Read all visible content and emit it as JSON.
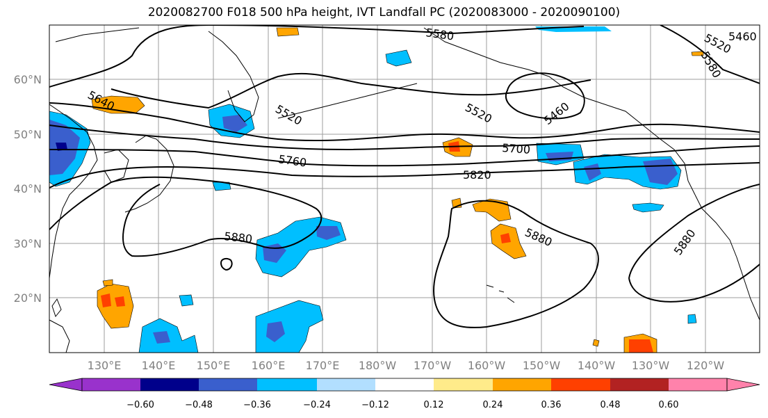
{
  "title": "2020082700 F018 500 hPa height, IVT Landfall PC (2020083000 - 2020090100)",
  "lat_labels": [
    "60°N",
    "50°N",
    "40°N",
    "30°N",
    "20°N"
  ],
  "lon_labels": [
    "130°E",
    "140°E",
    "150°E",
    "160°E",
    "170°E",
    "180°W",
    "170°W",
    "160°W",
    "150°W",
    "140°W",
    "130°W",
    "120°W"
  ],
  "contour_labels": [
    "5580",
    "5520",
    "5460",
    "5640",
    "5520",
    "5520",
    "5460",
    "5700",
    "5760",
    "5820",
    "5880",
    "5880",
    "5880",
    "5580"
  ],
  "colorbar": {
    "ticks": [
      "−0.60",
      "−0.48",
      "−0.36",
      "−0.24",
      "−0.12",
      "0.12",
      "0.24",
      "0.36",
      "0.48",
      "0.60"
    ],
    "colors": [
      "#9932cc",
      "#00008b",
      "#3a5fcd",
      "#00bfff",
      "#b2dfff",
      "#ffffff",
      "#ffeb8a",
      "#ffa500",
      "#ff4000",
      "#b22222",
      "#ff82ab"
    ]
  }
}
